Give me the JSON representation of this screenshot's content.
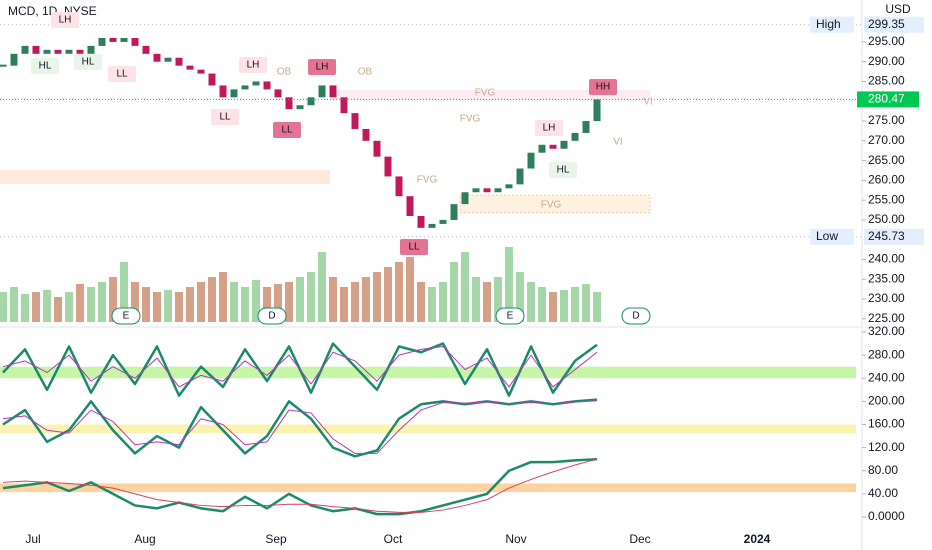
{
  "chart_data": {
    "type": "candlestick",
    "title": "MCD, 1D, NYSE",
    "currency": "USD",
    "close": [
      289,
      292,
      294,
      292,
      293,
      292,
      293,
      292,
      294,
      296,
      295,
      296,
      294,
      292,
      290,
      291,
      289,
      288,
      287,
      284,
      281,
      283,
      284,
      285,
      283,
      281,
      278,
      279,
      281,
      284,
      281,
      277,
      273,
      270,
      266,
      261,
      256,
      251,
      248,
      249,
      250,
      254,
      257,
      258,
      257,
      258,
      259,
      263,
      267,
      269,
      268,
      270,
      272,
      275,
      280.47
    ],
    "up_color": "#2e7d5b",
    "down_color": "#c2185b",
    "volume": [
      3,
      3.5,
      2.8,
      3,
      3.2,
      2.5,
      3,
      3.8,
      3.5,
      4,
      4.5,
      6,
      4,
      3.5,
      3,
      3.2,
      3,
      3.5,
      4,
      4.5,
      5,
      4,
      3.5,
      4.2,
      3.5,
      3.8,
      4,
      4.5,
      5,
      7,
      4.5,
      3.5,
      4,
      4.5,
      5,
      5.5,
      6,
      6.5,
      4,
      3.5,
      4,
      6,
      7,
      4.5,
      4,
      4.5,
      7.5,
      5,
      4,
      3.5,
      3,
      3.2,
      3.5,
      3.8,
      3
    ],
    "volume_up_color": "#a5d6a7",
    "volume_down_color": "#d4a088",
    "ylim": [
      224.2,
      305.6
    ],
    "yticks": [
      {
        "value": 295,
        "label": "295.00"
      },
      {
        "value": 290,
        "label": "290.00"
      },
      {
        "value": 285,
        "label": "285.00"
      },
      {
        "value": 275,
        "label": "275.00"
      },
      {
        "value": 270,
        "label": "270.00"
      },
      {
        "value": 265,
        "label": "265.00"
      },
      {
        "value": 260,
        "label": "260.00"
      },
      {
        "value": 255,
        "label": "255.00"
      },
      {
        "value": 250,
        "label": "250.00"
      },
      {
        "value": 240,
        "label": "240.00"
      },
      {
        "value": 235,
        "label": "235.00"
      },
      {
        "value": 230,
        "label": "230.00"
      },
      {
        "value": 225,
        "label": "225.00"
      }
    ],
    "high": {
      "label": "High",
      "value": 299.35
    },
    "low": {
      "label": "Low",
      "value": 245.73
    },
    "last": 280.47,
    "last_color": "#00c853",
    "x_labels": [
      "Jul",
      "Aug",
      "Sep",
      "Oct",
      "Nov",
      "Dec",
      "2024"
    ],
    "annotations": [
      {
        "text": "LH",
        "color": "#fde2e8"
      },
      {
        "text": "HL",
        "color": "#e8f5e9"
      },
      {
        "text": "HL",
        "color": "#e8f5e9"
      },
      {
        "text": "LL",
        "color": "#fde2e8"
      },
      {
        "text": "LH",
        "color": "#fde2e8"
      },
      {
        "text": "LL",
        "color": "#fde2e8"
      },
      {
        "text": "LL",
        "color": "#e57393"
      },
      {
        "text": "LH",
        "color": "#e57393"
      },
      {
        "text": "LL",
        "color": "#e57393"
      },
      {
        "text": "HH",
        "color": "#e57393"
      },
      {
        "text": "LH",
        "color": "#fde2e8"
      },
      {
        "text": "HL",
        "color": "#e8f5e9"
      },
      {
        "text": "FVG",
        "color": "none"
      },
      {
        "text": "FVG",
        "color": "none"
      },
      {
        "text": "FVG",
        "color": "none"
      },
      {
        "text": "FVG",
        "color": "none"
      },
      {
        "text": "OB",
        "color": "none"
      },
      {
        "text": "OB",
        "color": "none"
      },
      {
        "text": "VI",
        "color": "none"
      },
      {
        "text": "VI",
        "color": "none"
      },
      {
        "text": "E",
        "color": "#ffffff"
      },
      {
        "text": "D",
        "color": "#ffffff"
      },
      {
        "text": "E",
        "color": "#ffffff"
      },
      {
        "text": "D",
        "color": "#ffffff"
      }
    ],
    "oscillator": {
      "ylim": [
        0,
        320
      ],
      "yticks": [
        {
          "value": 320,
          "label": "320.00"
        },
        {
          "value": 280,
          "label": "280.00"
        },
        {
          "value": 240,
          "label": "240.00"
        },
        {
          "value": 200,
          "label": "200.00"
        },
        {
          "value": 160,
          "label": "160.00"
        },
        {
          "value": 120,
          "label": "120.00"
        },
        {
          "value": 80,
          "label": "80.00"
        },
        {
          "value": 40,
          "label": "40.00"
        },
        {
          "value": 0,
          "label": "0.0000"
        }
      ],
      "bands": [
        {
          "range": [
            240,
            260
          ],
          "color": "#c6f5a8"
        },
        {
          "range": [
            145,
            160
          ],
          "color": "#fdf3b0"
        },
        {
          "range": [
            43,
            58
          ],
          "color": "#fdd4a0"
        }
      ],
      "series": [
        {
          "color": "#1b8a6b",
          "width": 2.5,
          "values": [
            250,
            290,
            220,
            295,
            215,
            280,
            230,
            295,
            210,
            260,
            225,
            290,
            235,
            295,
            215,
            300,
            260,
            220,
            295,
            285,
            300,
            230,
            290,
            210,
            295,
            215,
            270,
            298
          ]
        },
        {
          "color": "#b03ab8",
          "width": 1,
          "values": [
            260,
            270,
            250,
            280,
            235,
            260,
            240,
            275,
            225,
            245,
            235,
            270,
            245,
            280,
            230,
            285,
            270,
            235,
            280,
            290,
            295,
            255,
            275,
            225,
            280,
            225,
            255,
            285
          ]
        },
        {
          "color": "#1b8a6b",
          "width": 2.5,
          "values": [
            160,
            185,
            130,
            150,
            200,
            150,
            110,
            140,
            120,
            190,
            150,
            110,
            140,
            200,
            170,
            120,
            105,
            115,
            170,
            195,
            200,
            195,
            200,
            195,
            200,
            195,
            200,
            203
          ]
        },
        {
          "color": "#b03ab8",
          "width": 1,
          "values": [
            170,
            175,
            150,
            145,
            185,
            165,
            125,
            130,
            125,
            170,
            160,
            125,
            130,
            185,
            180,
            135,
            110,
            110,
            150,
            185,
            198,
            197,
            199,
            196,
            198,
            196,
            199,
            201
          ]
        },
        {
          "color": "#1b8a6b",
          "width": 2.5,
          "values": [
            50,
            55,
            60,
            45,
            60,
            40,
            20,
            15,
            25,
            15,
            10,
            35,
            15,
            40,
            20,
            10,
            15,
            5,
            5,
            10,
            20,
            30,
            40,
            80,
            95,
            95,
            98,
            100
          ]
        },
        {
          "color": "#d3435a",
          "width": 1,
          "values": [
            60,
            62,
            60,
            58,
            55,
            50,
            40,
            30,
            25,
            20,
            18,
            20,
            20,
            22,
            22,
            18,
            15,
            10,
            8,
            8,
            12,
            20,
            30,
            50,
            65,
            78,
            90,
            100
          ]
        }
      ]
    }
  }
}
